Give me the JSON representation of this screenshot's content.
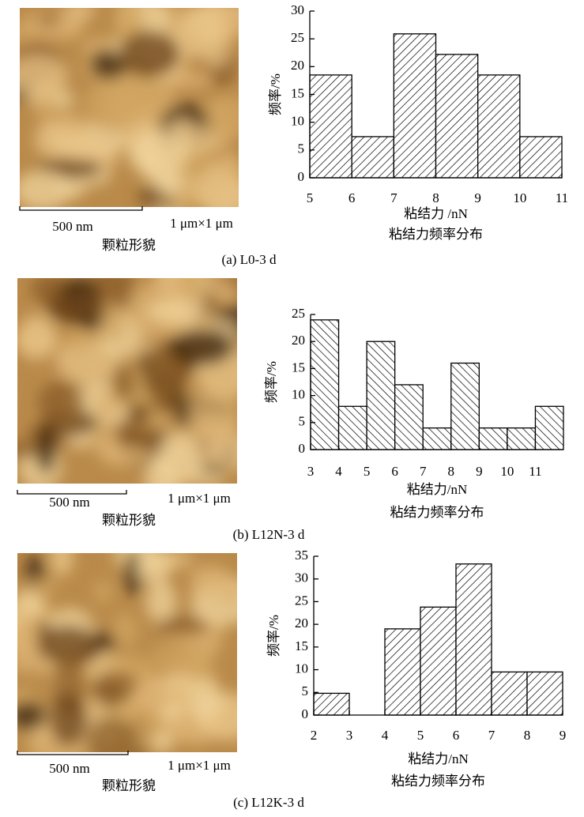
{
  "chart_data": [
    {
      "type": "histogram",
      "bins": [
        5,
        6,
        7,
        8,
        9,
        10,
        11
      ],
      "values": [
        18.5,
        7.4,
        25.9,
        22.2,
        18.5,
        7.4
      ],
      "xlim": [
        5,
        11
      ],
      "xticks": [
        5,
        6,
        7,
        8,
        9,
        10,
        11
      ],
      "ylim": [
        0,
        30
      ],
      "yticks": [
        0,
        5,
        10,
        15,
        20,
        25,
        30
      ],
      "hatch": "/",
      "color": "#ffffff",
      "xlabel": "粘结力 /nN",
      "ylabel": "频率/%",
      "title": "粘结力频率分布",
      "scale_bar": "500 nm",
      "size_label": "1 μm×1 μm",
      "image_label": "颗粒形貌",
      "caption": "(a) L0-3 d"
    },
    {
      "type": "histogram",
      "bins": [
        3,
        4,
        5,
        6,
        7,
        8,
        9,
        10,
        11,
        12
      ],
      "values": [
        24,
        8,
        20,
        12,
        4,
        16,
        4,
        4,
        8
      ],
      "xlim": [
        3,
        12
      ],
      "xticks": [
        3,
        4,
        5,
        6,
        7,
        8,
        9,
        10,
        11
      ],
      "ylim": [
        0,
        25
      ],
      "yticks": [
        0,
        5,
        10,
        15,
        20,
        25
      ],
      "hatch": "\\",
      "color": "#ffffff",
      "xlabel": "粘结力/nN",
      "ylabel": "频率/%",
      "title": "粘结力频率分布",
      "scale_bar": "500 nm",
      "size_label": "1 μm×1 μm",
      "image_label": "颗粒形貌",
      "caption": "(b) L12N-3 d"
    },
    {
      "type": "histogram",
      "bins": [
        2,
        3,
        4,
        5,
        6,
        7,
        8,
        9
      ],
      "values": [
        4.8,
        0,
        19,
        23.8,
        33.3,
        9.5,
        9.5
      ],
      "xlim": [
        2,
        9
      ],
      "xticks": [
        2,
        3,
        4,
        5,
        6,
        7,
        8,
        9
      ],
      "ylim": [
        0,
        35
      ],
      "yticks": [
        0,
        5,
        10,
        15,
        20,
        25,
        30,
        35
      ],
      "hatch": "/",
      "color": "#ffffff",
      "xlabel": "粘结力/nN",
      "ylabel": "频率/%",
      "title": "粘结力频率分布",
      "scale_bar": "500 nm",
      "size_label": "1 μm×1 μm",
      "image_label": "颗粒形貌",
      "caption": "(c) L12K-3 d"
    }
  ]
}
